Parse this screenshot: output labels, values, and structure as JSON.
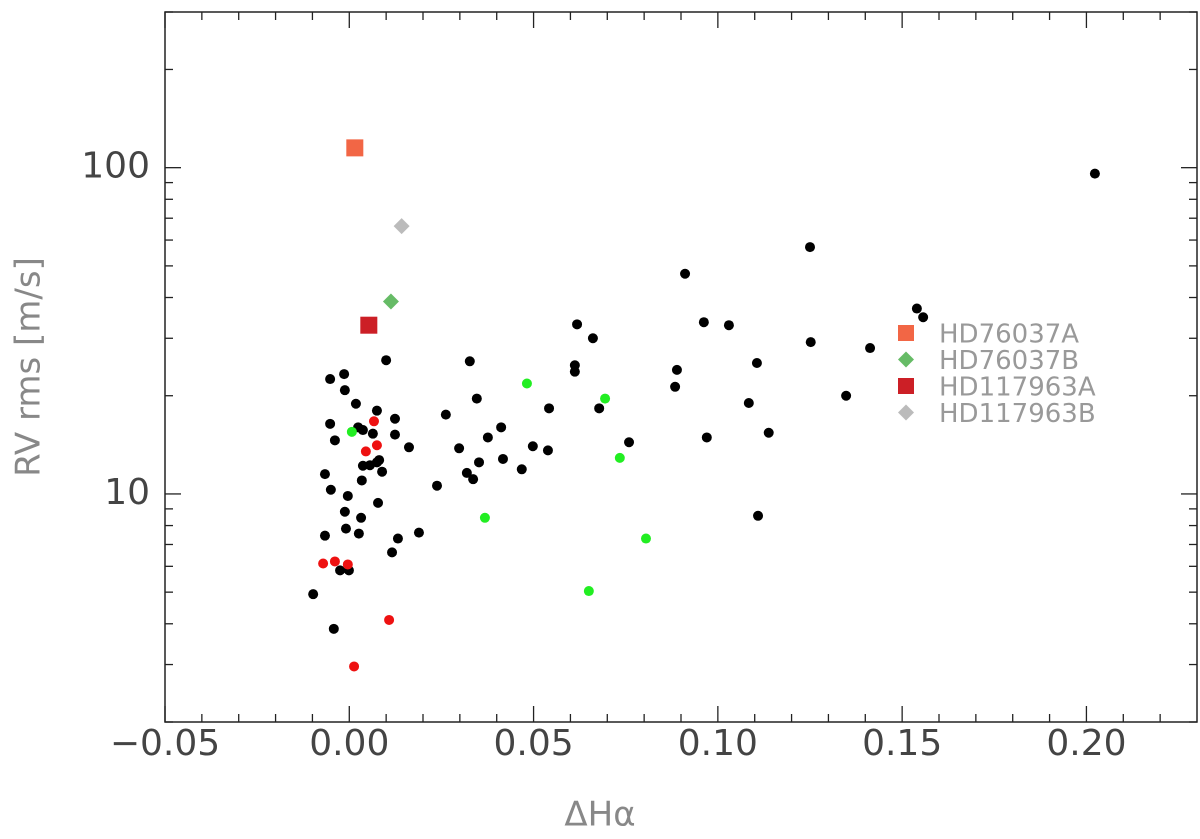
{
  "chart_data": {
    "type": "scatter",
    "xlabel": "ΔHα",
    "ylabel": "RV rms [m/s]",
    "xlim": [
      -0.05,
      0.23
    ],
    "ylim": [
      2,
      300
    ],
    "ylog": true,
    "legend": "right",
    "xticks": [
      {
        "value": -0.05,
        "label": "−0.05"
      },
      {
        "value": 0,
        "label": "0.00"
      },
      0.05,
      {
        "value": 0.1,
        "label": "0.10"
      },
      0.15,
      {
        "value": 0.2,
        "label": "0.20"
      }
    ],
    "xminorticks": [
      -0.04,
      -0.03,
      -0.02,
      -0.01,
      0.01,
      0.02,
      0.03,
      0.04,
      0.06,
      0.07,
      0.08,
      0.09,
      0.11,
      0.12,
      0.13,
      0.14,
      0.16,
      0.17,
      0.18,
      0.19,
      0.21,
      0.22
    ],
    "yticks": [
      10,
      100
    ],
    "yminorticks": [
      2,
      3,
      4,
      5,
      6,
      7,
      8,
      9,
      20,
      30,
      40,
      50,
      60,
      70,
      80,
      90,
      200,
      300
    ],
    "series": [
      {
        "color": "#000000",
        "marker": "circle",
        "x": [
          -0.0098,
          -0.0066,
          -0.0066,
          -0.0052,
          -0.005,
          -0.0052,
          -0.0042,
          -0.0039,
          -0.0025,
          -0.0014,
          -0.0012,
          -0.0012,
          -0.0009,
          -0.0004,
          -0.0001,
          0.0018,
          0.0024,
          0.0026,
          0.0032,
          0.0034,
          0.0037,
          0.0037,
          0.0056,
          0.0064,
          0.0075,
          0.0075,
          0.0078,
          0.0081,
          0.0089,
          0.01,
          0.0116,
          0.0124,
          0.0124,
          0.0132,
          0.0162,
          0.0189,
          0.0238,
          0.0262,
          0.0298,
          0.0319,
          0.0327,
          0.0336,
          0.0346,
          0.0352,
          0.0376,
          0.0412,
          0.0417,
          0.0468,
          0.0498,
          0.0539,
          0.0542,
          0.0612,
          0.0612,
          0.0618,
          0.0661,
          0.0678,
          0.0759,
          0.0884,
          0.0889,
          0.0911,
          0.0962,
          0.097,
          0.103,
          0.1084,
          0.1106,
          0.1109,
          0.1138,
          0.125,
          0.1252,
          0.1348,
          0.1413,
          0.154,
          0.1557,
          0.2023
        ],
        "y": [
          4.93,
          7.45,
          11.5,
          16.4,
          10.3,
          22.5,
          3.86,
          14.6,
          5.83,
          23.3,
          20.8,
          8.82,
          7.83,
          9.86,
          5.83,
          18.9,
          16.0,
          7.56,
          8.45,
          11.0,
          12.2,
          15.7,
          12.25,
          15.3,
          12.5,
          18.0,
          9.39,
          12.7,
          11.7,
          25.7,
          6.62,
          17.0,
          15.2,
          7.3,
          13.9,
          7.61,
          10.6,
          17.5,
          13.8,
          11.6,
          25.5,
          11.1,
          19.6,
          12.5,
          14.9,
          16.0,
          12.8,
          11.9,
          14.0,
          13.6,
          18.3,
          23.7,
          24.8,
          33.1,
          30.0,
          18.3,
          14.4,
          21.3,
          24.0,
          47.3,
          33.6,
          14.9,
          32.9,
          19.0,
          25.2,
          8.57,
          15.4,
          57.1,
          29.2,
          20.0,
          28.0,
          37.0,
          34.8,
          95.9
        ]
      },
      {
        "color": "#ee1111",
        "marker": "circle",
        "x": [
          -0.0071,
          -0.0039,
          -0.0004,
          0.0013,
          0.0045,
          0.0067,
          0.0075,
          0.0108
        ],
        "y": [
          6.12,
          6.21,
          6.08,
          2.96,
          13.5,
          16.7,
          14.1,
          4.11
        ]
      },
      {
        "color": "#22ee22",
        "marker": "circle",
        "x": [
          0.0007,
          0.0368,
          0.0482,
          0.065,
          0.0694,
          0.0734,
          0.0805
        ],
        "y": [
          15.5,
          8.45,
          21.8,
          5.04,
          19.6,
          12.9,
          7.3
        ]
      },
      {
        "name": "HD76037A",
        "color": "#f26645",
        "marker": "square",
        "x": [
          0.0015
        ],
        "y": [
          115
        ]
      },
      {
        "name": "HD76037B",
        "color": "#66bb66",
        "marker": "diamond",
        "x": [
          0.0113
        ],
        "y": [
          38.9
        ]
      },
      {
        "name": "HD117963A",
        "color": "#cc1f26",
        "marker": "square",
        "x": [
          0.0053
        ],
        "y": [
          32.9
        ]
      },
      {
        "name": "HD117963B",
        "color": "#bbbbbb",
        "marker": "diamond",
        "x": [
          0.0142
        ],
        "y": [
          66.2
        ]
      }
    ]
  }
}
